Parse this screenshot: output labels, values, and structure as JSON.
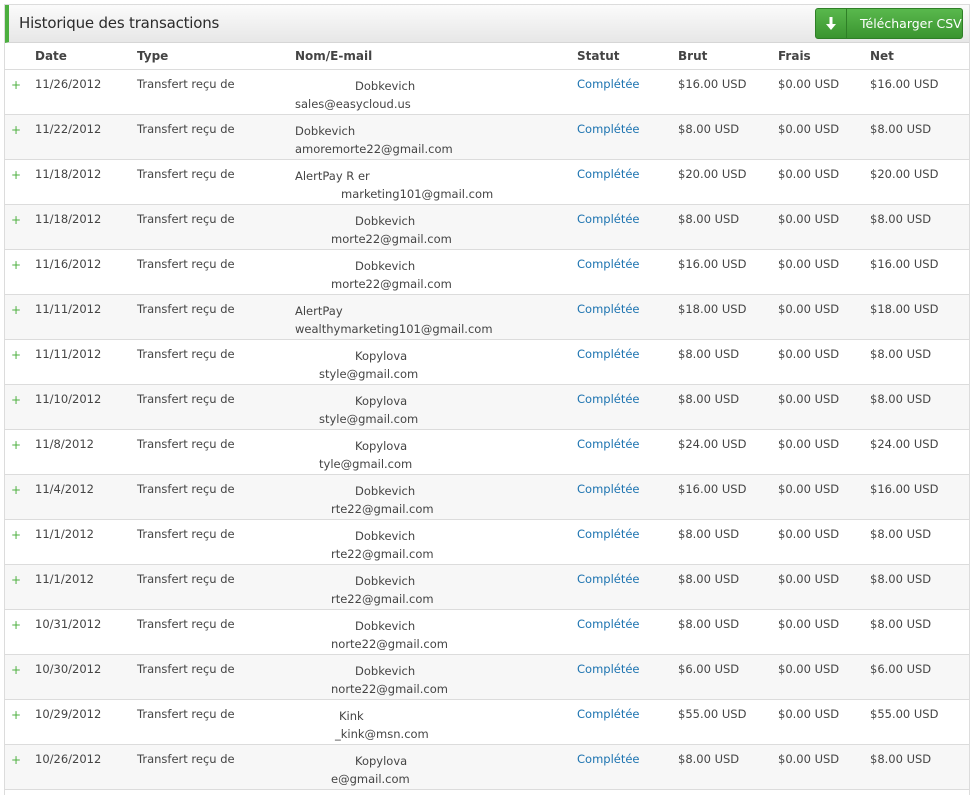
{
  "header": {
    "title": "Historique des transactions",
    "download_label": "Télécharger CSV",
    "accent_color": "#4caf3f"
  },
  "columns": {
    "date": "Date",
    "type": "Type",
    "name": "Nom/E-mail",
    "status": "Statut",
    "gross": "Brut",
    "fees": "Frais",
    "net": "Net"
  },
  "rows": [
    {
      "date": "11/26/2012",
      "type": "Transfert reçu de",
      "name": "Dobkevich",
      "email": "sales@easycloud.us",
      "status": "Complétée",
      "gross": "$16.00 USD",
      "fees": "$0.00 USD",
      "net": "$16.00 USD"
    },
    {
      "date": "11/22/2012",
      "type": "Transfert reçu de",
      "name": "Dobkevich",
      "email": "amoremorte22@gmail.com",
      "status": "Complétée",
      "gross": "$8.00 USD",
      "fees": "$0.00 USD",
      "net": "$8.00 USD"
    },
    {
      "date": "11/18/2012",
      "type": "Transfert reçu de",
      "name": "AlertPay R        er",
      "email": "marketing101@gmail.com",
      "status": "Complétée",
      "gross": "$20.00 USD",
      "fees": "$0.00 USD",
      "net": "$20.00 USD"
    },
    {
      "date": "11/18/2012",
      "type": "Transfert reçu de",
      "name": "Dobkevich",
      "email": "morte22@gmail.com",
      "status": "Complétée",
      "gross": "$8.00 USD",
      "fees": "$0.00 USD",
      "net": "$8.00 USD"
    },
    {
      "date": "11/16/2012",
      "type": "Transfert reçu de",
      "name": "Dobkevich",
      "email": "morte22@gmail.com",
      "status": "Complétée",
      "gross": "$16.00 USD",
      "fees": "$0.00 USD",
      "net": "$16.00 USD"
    },
    {
      "date": "11/11/2012",
      "type": "Transfert reçu de",
      "name": "AlertPay",
      "email": "wealthymarketing101@gmail.com",
      "status": "Complétée",
      "gross": "$18.00 USD",
      "fees": "$0.00 USD",
      "net": "$18.00 USD"
    },
    {
      "date": "11/11/2012",
      "type": "Transfert reçu de",
      "name": "Kopylova",
      "email": "style@gmail.com",
      "status": "Complétée",
      "gross": "$8.00 USD",
      "fees": "$0.00 USD",
      "net": "$8.00 USD"
    },
    {
      "date": "11/10/2012",
      "type": "Transfert reçu de",
      "name": "Kopylova",
      "email": "style@gmail.com",
      "status": "Complétée",
      "gross": "$8.00 USD",
      "fees": "$0.00 USD",
      "net": "$8.00 USD"
    },
    {
      "date": "11/8/2012",
      "type": "Transfert reçu de",
      "name": "Kopylova",
      "email": "tyle@gmail.com",
      "status": "Complétée",
      "gross": "$24.00 USD",
      "fees": "$0.00 USD",
      "net": "$24.00 USD"
    },
    {
      "date": "11/4/2012",
      "type": "Transfert reçu de",
      "name": "Dobkevich",
      "email": "rte22@gmail.com",
      "status": "Complétée",
      "gross": "$16.00 USD",
      "fees": "$0.00 USD",
      "net": "$16.00 USD"
    },
    {
      "date": "11/1/2012",
      "type": "Transfert reçu de",
      "name": "Dobkevich",
      "email": "rte22@gmail.com",
      "status": "Complétée",
      "gross": "$8.00 USD",
      "fees": "$0.00 USD",
      "net": "$8.00 USD"
    },
    {
      "date": "11/1/2012",
      "type": "Transfert reçu de",
      "name": "Dobkevich",
      "email": "rte22@gmail.com",
      "status": "Complétée",
      "gross": "$8.00 USD",
      "fees": "$0.00 USD",
      "net": "$8.00 USD"
    },
    {
      "date": "10/31/2012",
      "type": "Transfert reçu de",
      "name": "Dobkevich",
      "email": "norte22@gmail.com",
      "status": "Complétée",
      "gross": "$8.00 USD",
      "fees": "$0.00 USD",
      "net": "$8.00 USD"
    },
    {
      "date": "10/30/2012",
      "type": "Transfert reçu de",
      "name": "Dobkevich",
      "email": "norte22@gmail.com",
      "status": "Complétée",
      "gross": "$6.00 USD",
      "fees": "$0.00 USD",
      "net": "$6.00 USD"
    },
    {
      "date": "10/29/2012",
      "type": "Transfert reçu de",
      "name": "Kink",
      "email": "_kink@msn.com",
      "status": "Complétée",
      "gross": "$55.00 USD",
      "fees": "$0.00 USD",
      "net": "$55.00 USD"
    },
    {
      "date": "10/26/2012",
      "type": "Transfert reçu de",
      "name": "Kopylova",
      "email": "e@gmail.com",
      "status": "Complétée",
      "gross": "$8.00 USD",
      "fees": "$0.00 USD",
      "net": "$8.00 USD"
    }
  ]
}
